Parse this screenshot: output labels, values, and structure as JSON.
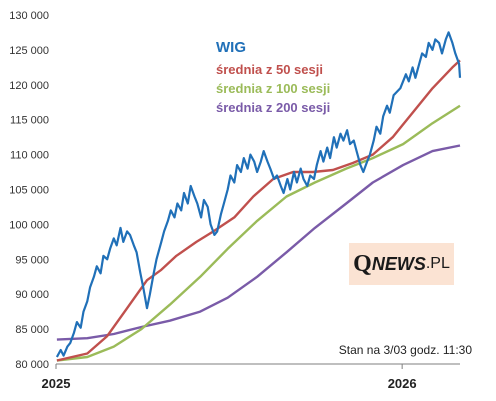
{
  "chart_data": {
    "type": "line",
    "title": "",
    "xlabel": "",
    "ylabel": "",
    "ylim": [
      80000,
      130000
    ],
    "xlim": [
      "2025-01-01",
      "2026-03-03"
    ],
    "y_ticks": [
      "80 000",
      "85 000",
      "90 000",
      "95 000",
      "100 000",
      "105 000",
      "110 000",
      "115 000",
      "120 000",
      "125 000",
      "130 000"
    ],
    "x_ticks": [
      {
        "label": "2025",
        "date": "2025-01-01"
      },
      {
        "label": "2026",
        "date": "2026-01-01"
      }
    ],
    "grid": false,
    "legend": "top-center",
    "annotation": "Stan na 3/03 godz. 11:30",
    "series": [
      {
        "name": "WIG",
        "color": "#2070b8",
        "points": [
          [
            "2025-01-02",
            81000
          ],
          [
            "2025-01-06",
            82000
          ],
          [
            "2025-01-09",
            81200
          ],
          [
            "2025-01-13",
            82500
          ],
          [
            "2025-01-16",
            83000
          ],
          [
            "2025-01-20",
            84500
          ],
          [
            "2025-01-23",
            86000
          ],
          [
            "2025-01-27",
            85200
          ],
          [
            "2025-01-30",
            87500
          ],
          [
            "2025-02-03",
            89000
          ],
          [
            "2025-02-06",
            91000
          ],
          [
            "2025-02-10",
            92500
          ],
          [
            "2025-02-13",
            94000
          ],
          [
            "2025-02-17",
            93000
          ],
          [
            "2025-02-20",
            95500
          ],
          [
            "2025-02-24",
            95000
          ],
          [
            "2025-02-27",
            96500
          ],
          [
            "2025-03-03",
            98000
          ],
          [
            "2025-03-06",
            97000
          ],
          [
            "2025-03-10",
            99500
          ],
          [
            "2025-03-13",
            97500
          ],
          [
            "2025-03-17",
            99000
          ],
          [
            "2025-03-20",
            98500
          ],
          [
            "2025-03-24",
            97000
          ],
          [
            "2025-03-27",
            96000
          ],
          [
            "2025-03-31",
            93000
          ],
          [
            "2025-04-03",
            91000
          ],
          [
            "2025-04-07",
            88000
          ],
          [
            "2025-04-10",
            90000
          ],
          [
            "2025-04-14",
            93000
          ],
          [
            "2025-04-17",
            95000
          ],
          [
            "2025-04-22",
            97500
          ],
          [
            "2025-04-25",
            99000
          ],
          [
            "2025-04-29",
            100500
          ],
          [
            "2025-05-02",
            102000
          ],
          [
            "2025-05-06",
            101000
          ],
          [
            "2025-05-09",
            103000
          ],
          [
            "2025-05-13",
            102000
          ],
          [
            "2025-05-16",
            104500
          ],
          [
            "2025-05-20",
            103000
          ],
          [
            "2025-05-23",
            105500
          ],
          [
            "2025-05-27",
            104000
          ],
          [
            "2025-05-30",
            103000
          ],
          [
            "2025-06-03",
            101000
          ],
          [
            "2025-06-06",
            103500
          ],
          [
            "2025-06-10",
            102500
          ],
          [
            "2025-06-13",
            100000
          ],
          [
            "2025-06-17",
            98500
          ],
          [
            "2025-06-20",
            99000
          ],
          [
            "2025-06-24",
            101500
          ],
          [
            "2025-06-27",
            103000
          ],
          [
            "2025-07-01",
            105000
          ],
          [
            "2025-07-04",
            107000
          ],
          [
            "2025-07-08",
            106000
          ],
          [
            "2025-07-11",
            108500
          ],
          [
            "2025-07-15",
            107500
          ],
          [
            "2025-07-18",
            109500
          ],
          [
            "2025-07-22",
            108000
          ],
          [
            "2025-07-25",
            110000
          ],
          [
            "2025-07-29",
            109000
          ],
          [
            "2025-08-01",
            107500
          ],
          [
            "2025-08-05",
            109000
          ],
          [
            "2025-08-08",
            110500
          ],
          [
            "2025-08-12",
            109000
          ],
          [
            "2025-08-15",
            108000
          ],
          [
            "2025-08-19",
            106500
          ],
          [
            "2025-08-22",
            107000
          ],
          [
            "2025-08-26",
            105500
          ],
          [
            "2025-08-29",
            104500
          ],
          [
            "2025-09-02",
            106500
          ],
          [
            "2025-09-05",
            105000
          ],
          [
            "2025-09-09",
            107500
          ],
          [
            "2025-09-12",
            106000
          ],
          [
            "2025-09-16",
            108000
          ],
          [
            "2025-09-19",
            106500
          ],
          [
            "2025-09-23",
            105500
          ],
          [
            "2025-09-26",
            107000
          ],
          [
            "2025-09-30",
            106500
          ],
          [
            "2025-10-03",
            108500
          ],
          [
            "2025-10-07",
            110500
          ],
          [
            "2025-10-10",
            109000
          ],
          [
            "2025-10-14",
            111000
          ],
          [
            "2025-10-17",
            109500
          ],
          [
            "2025-10-21",
            112500
          ],
          [
            "2025-10-24",
            111000
          ],
          [
            "2025-10-28",
            113000
          ],
          [
            "2025-10-31",
            112000
          ],
          [
            "2025-11-04",
            113500
          ],
          [
            "2025-11-07",
            111500
          ],
          [
            "2025-11-11",
            112000
          ],
          [
            "2025-11-14",
            110500
          ],
          [
            "2025-11-18",
            108500
          ],
          [
            "2025-11-21",
            107500
          ],
          [
            "2025-11-25",
            109000
          ],
          [
            "2025-11-28",
            110000
          ],
          [
            "2025-12-02",
            112000
          ],
          [
            "2025-12-05",
            114000
          ],
          [
            "2025-12-09",
            113000
          ],
          [
            "2025-12-12",
            115500
          ],
          [
            "2025-12-16",
            117000
          ],
          [
            "2025-12-19",
            116000
          ],
          [
            "2025-12-23",
            118500
          ],
          [
            "2025-12-30",
            119500
          ],
          [
            "2026-01-05",
            121500
          ],
          [
            "2026-01-08",
            120500
          ],
          [
            "2026-01-12",
            122500
          ],
          [
            "2026-01-15",
            121000
          ],
          [
            "2026-01-19",
            123000
          ],
          [
            "2026-01-22",
            124500
          ],
          [
            "2026-01-26",
            124000
          ],
          [
            "2026-01-29",
            126000
          ],
          [
            "2026-02-02",
            125000
          ],
          [
            "2026-02-05",
            126500
          ],
          [
            "2026-02-09",
            126000
          ],
          [
            "2026-02-12",
            124500
          ],
          [
            "2026-02-16",
            126500
          ],
          [
            "2026-02-19",
            127500
          ],
          [
            "2026-02-23",
            126000
          ],
          [
            "2026-02-26",
            124500
          ],
          [
            "2026-03-02",
            123000
          ],
          [
            "2026-03-03",
            121000
          ]
        ]
      },
      {
        "name": "średnia z 50 sesji",
        "color": "#c0504d",
        "points": [
          [
            "2025-01-02",
            80500
          ],
          [
            "2025-02-03",
            81500
          ],
          [
            "2025-02-24",
            84000
          ],
          [
            "2025-03-17",
            88000
          ],
          [
            "2025-04-07",
            92000
          ],
          [
            "2025-04-22",
            93500
          ],
          [
            "2025-05-08",
            95500
          ],
          [
            "2025-05-29",
            97500
          ],
          [
            "2025-06-16",
            99000
          ],
          [
            "2025-07-08",
            101000
          ],
          [
            "2025-07-28",
            104000
          ],
          [
            "2025-08-18",
            106500
          ],
          [
            "2025-09-08",
            107500
          ],
          [
            "2025-09-29",
            107500
          ],
          [
            "2025-10-20",
            107800
          ],
          [
            "2025-11-10",
            108800
          ],
          [
            "2025-12-01",
            110000
          ],
          [
            "2025-12-22",
            112500
          ],
          [
            "2026-01-12",
            116000
          ],
          [
            "2026-02-02",
            119500
          ],
          [
            "2026-02-23",
            122500
          ],
          [
            "2026-03-03",
            123500
          ]
        ]
      },
      {
        "name": "średnia z 100 sesji",
        "color": "#9bbb59",
        "points": [
          [
            "2025-01-02",
            80500
          ],
          [
            "2025-02-03",
            81000
          ],
          [
            "2025-03-03",
            82500
          ],
          [
            "2025-04-01",
            85000
          ],
          [
            "2025-05-01",
            88500
          ],
          [
            "2025-06-02",
            92500
          ],
          [
            "2025-07-01",
            96500
          ],
          [
            "2025-08-01",
            100500
          ],
          [
            "2025-09-01",
            104000
          ],
          [
            "2025-10-01",
            106000
          ],
          [
            "2025-11-03",
            108000
          ],
          [
            "2025-12-01",
            109500
          ],
          [
            "2026-01-02",
            111500
          ],
          [
            "2026-02-02",
            114500
          ],
          [
            "2026-03-03",
            117000
          ]
        ]
      },
      {
        "name": "średnia z 200 sesji",
        "color": "#7a5ba8",
        "points": [
          [
            "2025-01-02",
            83500
          ],
          [
            "2025-02-03",
            83700
          ],
          [
            "2025-03-03",
            84300
          ],
          [
            "2025-04-01",
            85300
          ],
          [
            "2025-05-01",
            86200
          ],
          [
            "2025-06-02",
            87500
          ],
          [
            "2025-07-01",
            89500
          ],
          [
            "2025-08-01",
            92500
          ],
          [
            "2025-09-01",
            96000
          ],
          [
            "2025-10-01",
            99500
          ],
          [
            "2025-11-03",
            103000
          ],
          [
            "2025-12-01",
            106000
          ],
          [
            "2026-01-02",
            108500
          ],
          [
            "2026-02-02",
            110500
          ],
          [
            "2026-03-03",
            111300
          ]
        ]
      }
    ]
  },
  "logo": {
    "q": "Q",
    "news": "NEWS",
    "pl": ".PL"
  }
}
